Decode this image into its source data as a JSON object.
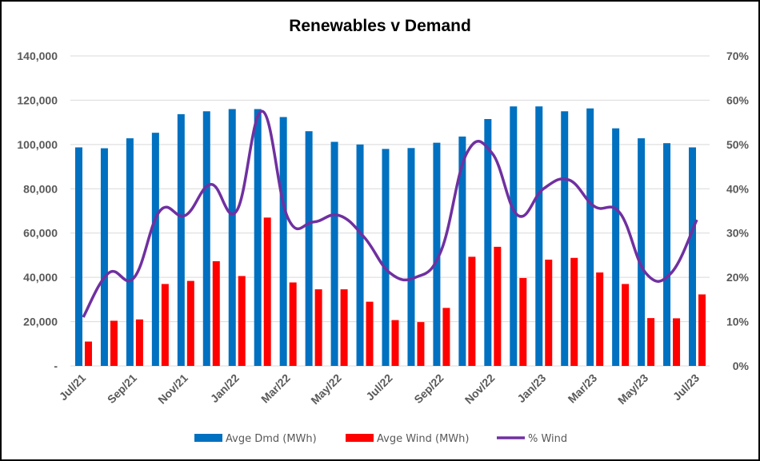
{
  "chart_data": {
    "type": "bar",
    "title": "Renewables v Demand",
    "categories": [
      "Jul/21",
      "Aug/21",
      "Sep/21",
      "Oct/21",
      "Nov/21",
      "Dec/21",
      "Jan/22",
      "Feb/22",
      "Mar/22",
      "Apr/22",
      "May/22",
      "Jun/22",
      "Jul/22",
      "Aug/22",
      "Sep/22",
      "Oct/22",
      "Nov/22",
      "Dec/22",
      "Jan/23",
      "Feb/23",
      "Mar/23",
      "Apr/23",
      "May/23",
      "Jun/23",
      "Jul/23"
    ],
    "x_tick_labels": [
      "Jul/21",
      "Sep/21",
      "Nov/21",
      "Jan/22",
      "Mar/22",
      "May/22",
      "Jul/22",
      "Sep/22",
      "Nov/22",
      "Jan/23",
      "Mar/23",
      "May/23",
      "Jul/23"
    ],
    "y_left": {
      "ylim": [
        0,
        140000
      ],
      "tick_labels": [
        "-",
        "20,000",
        "40,000",
        "60,000",
        "80,000",
        "100,000",
        "120,000",
        "140,000"
      ]
    },
    "y_right": {
      "ylim": [
        0,
        0.7
      ],
      "tick_labels": [
        "0%",
        "10%",
        "20%",
        "30%",
        "40%",
        "50%",
        "60%",
        "70%"
      ]
    },
    "grid": true,
    "legend_position": "bottom",
    "series": [
      {
        "name": "Avge Dmd (MWh)",
        "type": "bar",
        "axis": "left",
        "color": "#0070C0",
        "values": [
          98700,
          98300,
          102800,
          105300,
          113700,
          115000,
          116000,
          116000,
          112400,
          106000,
          101200,
          100000,
          98000,
          98400,
          100800,
          103600,
          111500,
          117200,
          117200,
          115000,
          116300,
          107300,
          102800,
          100600,
          98700
        ]
      },
      {
        "name": "Avge Wind (MWh)",
        "type": "bar",
        "axis": "left",
        "color": "#FF0000",
        "values": [
          11000,
          20400,
          21000,
          37000,
          38400,
          47300,
          40600,
          67000,
          37700,
          34600,
          34600,
          29000,
          20700,
          19800,
          26200,
          49300,
          53800,
          39700,
          48000,
          48800,
          42200,
          37000,
          21600,
          21500,
          32300
        ]
      },
      {
        "name": "% Wind",
        "type": "line",
        "axis": "right",
        "color": "#7030A0",
        "values": [
          0.11,
          0.21,
          0.2,
          0.35,
          0.34,
          0.41,
          0.35,
          0.575,
          0.335,
          0.325,
          0.34,
          0.29,
          0.21,
          0.2,
          0.26,
          0.48,
          0.48,
          0.34,
          0.4,
          0.42,
          0.36,
          0.345,
          0.21,
          0.21,
          0.33
        ]
      }
    ]
  }
}
